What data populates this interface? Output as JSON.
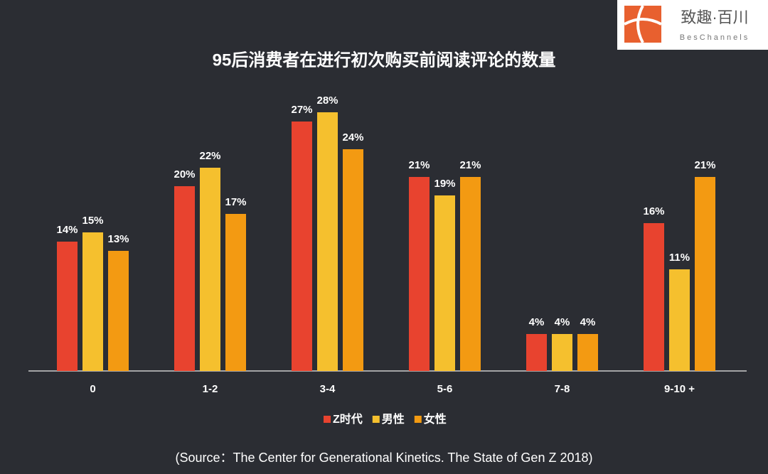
{
  "logo": {
    "name": "致趣·百川",
    "sub": "BesChannels"
  },
  "chart_data": {
    "type": "bar",
    "title": "95后消费者在进行初次购买前阅读评论的数量",
    "source": "(Source：The Center for Generational Kinetics. The State of Gen Z 2018)",
    "categories": [
      "0",
      "1-2",
      "3-4",
      "5-6",
      "7-8",
      "9-10 +"
    ],
    "ylim": [
      0,
      30
    ],
    "legend": "bottom",
    "series": [
      {
        "name": "Z时代",
        "color": "#e8432f",
        "values": [
          14,
          20,
          27,
          21,
          4,
          16
        ],
        "value_labels": [
          "14%",
          "20%",
          "27%",
          "21%",
          "4%",
          "16%"
        ]
      },
      {
        "name": "男性",
        "color": "#f5c02e",
        "values": [
          15,
          22,
          28,
          19,
          4,
          11
        ],
        "value_labels": [
          "15%",
          "22%",
          "28%",
          "19%",
          "4%",
          "11%"
        ]
      },
      {
        "name": "女性",
        "color": "#f39a12",
        "values": [
          13,
          17,
          24,
          21,
          4,
          21
        ],
        "value_labels": [
          "13%",
          "17%",
          "24%",
          "21%",
          "4%",
          "21%"
        ]
      }
    ]
  }
}
